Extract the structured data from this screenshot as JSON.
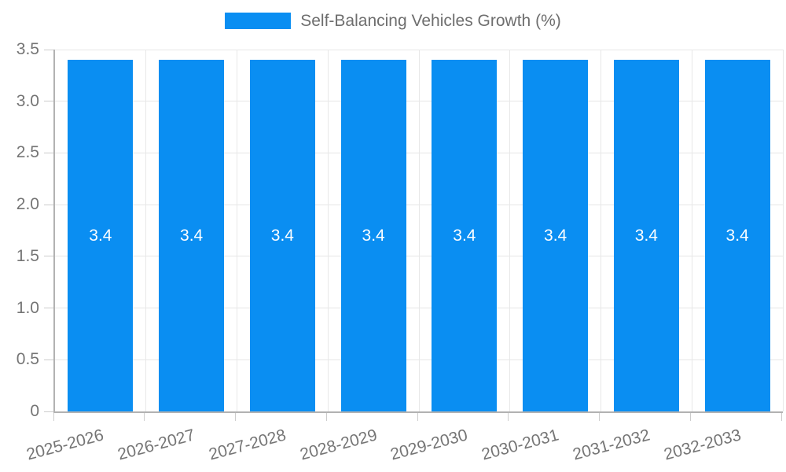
{
  "chart_data": {
    "type": "bar",
    "title": "Self-Balancing Vehicles Growth (%)",
    "categories": [
      "2025-2026",
      "2026-2027",
      "2027-2028",
      "2028-2029",
      "2029-2030",
      "2030-2031",
      "2031-2032",
      "2032-2033"
    ],
    "values": [
      3.4,
      3.4,
      3.4,
      3.4,
      3.4,
      3.4,
      3.4,
      3.4
    ],
    "value_labels": [
      "3.4",
      "3.4",
      "3.4",
      "3.4",
      "3.4",
      "3.4",
      "3.4",
      "3.4"
    ],
    "xlabel": "",
    "ylabel": "",
    "ylim": [
      0,
      3.5
    ],
    "y_ticks": [
      "0",
      "0.5",
      "1.0",
      "1.5",
      "2.0",
      "2.5",
      "3.0",
      "3.5"
    ],
    "y_tick_values": [
      0,
      0.5,
      1.0,
      1.5,
      2.0,
      2.5,
      3.0,
      3.5
    ],
    "grid": true,
    "legend_position": "top",
    "colors": {
      "bar": "#0a8ef2",
      "bar_label_text": "#ffffff",
      "axis_line": "#b2b2b2",
      "gridline": "#e6e6e6",
      "tick_text": "#757575",
      "legend_text": "#6e6e6e"
    }
  }
}
